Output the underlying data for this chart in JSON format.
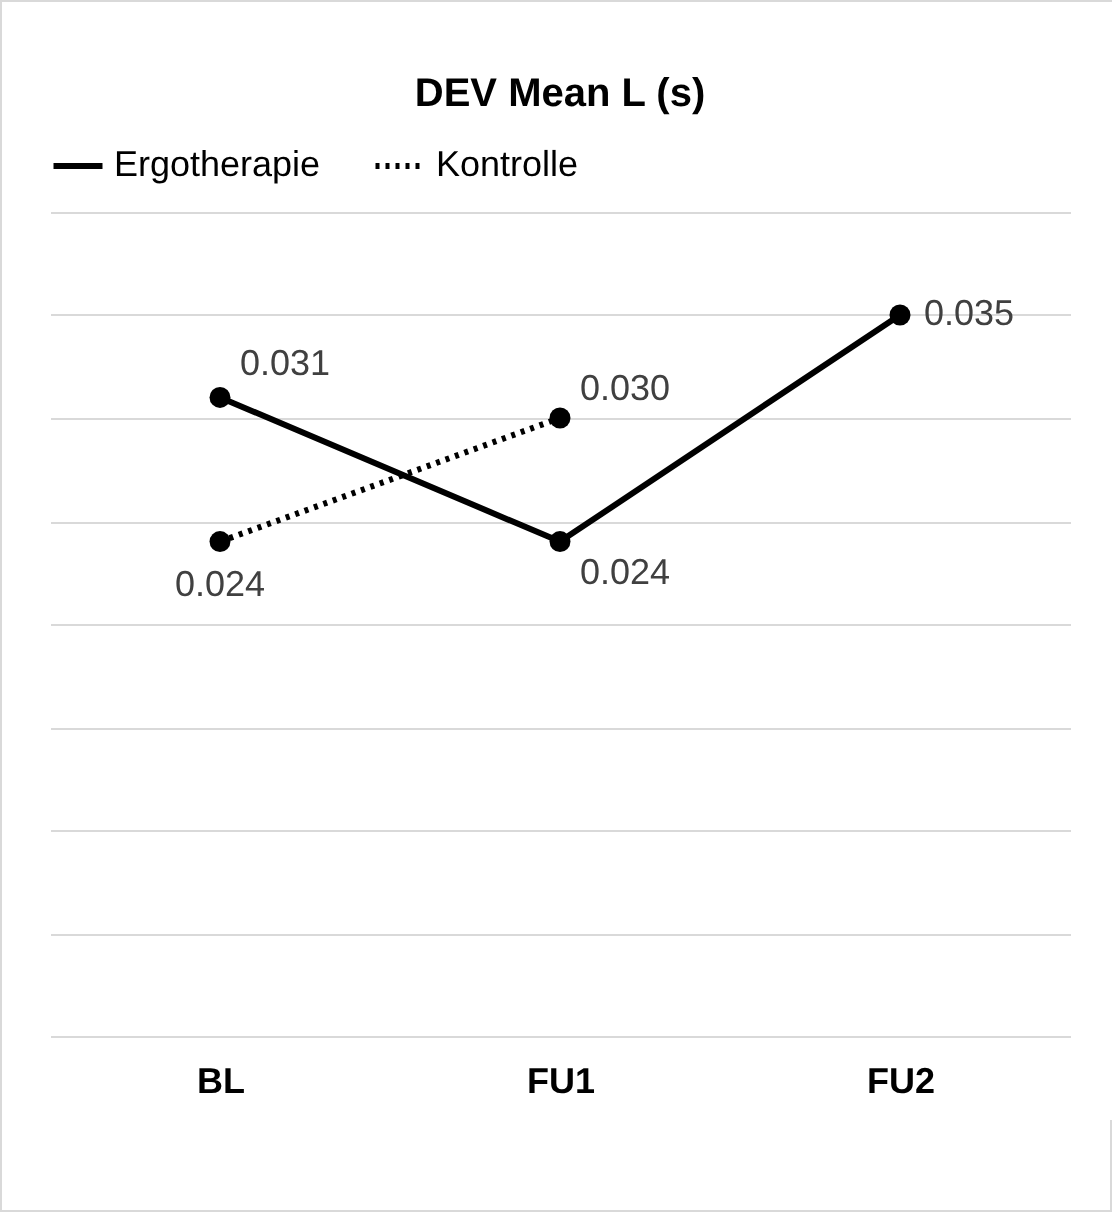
{
  "chart_data": {
    "type": "line",
    "title": "DEV Mean L (s)",
    "categories": [
      "BL",
      "FU1",
      "FU2"
    ],
    "series": [
      {
        "name": "Ergotherapie",
        "color": "#000000",
        "line_style": "solid",
        "values": [
          0.031,
          0.024,
          0.035
        ],
        "value_labels": [
          "0.031",
          "0.024",
          "0.035"
        ]
      },
      {
        "name": "Kontrolle",
        "color": "#000000",
        "line_style": "dotted",
        "values": [
          0.024,
          0.03,
          null
        ],
        "value_labels": [
          "0.024",
          "0.030",
          null
        ]
      }
    ],
    "ylim": [
      0,
      0.04
    ],
    "yticks": [
      0,
      0.005,
      0.01,
      0.015,
      0.02,
      0.025,
      0.03,
      0.035,
      0.04
    ],
    "tick_labels": "x",
    "grid": "y",
    "legend": "top",
    "marker": "circle"
  }
}
